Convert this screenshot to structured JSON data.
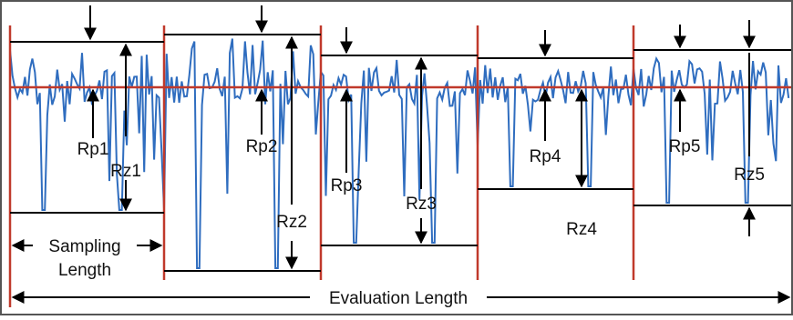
{
  "colors": {
    "profile": "#2f6dbf",
    "boundary": "#c0392b",
    "annotation": "#000000",
    "frame": "#555555"
  },
  "labels": {
    "rp1": "Rp1",
    "rz1": "Rz1",
    "rp2": "Rp2",
    "rz2": "Rz2",
    "rp3": "Rp3",
    "rz3": "Rz3",
    "rp4": "Rp4",
    "rz4": "Rz4",
    "rp5": "Rp5",
    "rz5": "Rz5",
    "sampling_line1": "Sampling",
    "sampling_line2": "Length",
    "evaluation": "Evaluation Length"
  }
}
